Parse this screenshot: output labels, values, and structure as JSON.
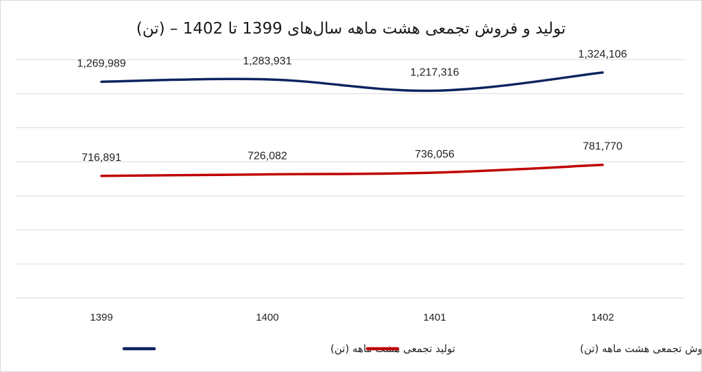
{
  "chart_data": {
    "type": "line",
    "title": "تولید و فروش تجمعی هشت ماهه سال‌های 1399 تا 1402 – (تن)",
    "categories": [
      "1399",
      "1400",
      "1401",
      "1402"
    ],
    "series": [
      {
        "name": "تولید تجمعی هشت ماهه (تن)",
        "color": "#0d2460",
        "values": [
          1269989,
          1283931,
          1217316,
          1324106
        ],
        "labels": [
          "1,269,989",
          "1,283,931",
          "1,217,316",
          "1,324,106"
        ]
      },
      {
        "name": "فروش تجمعی هشت ماهه (تن)",
        "color": "#c00000",
        "values": [
          716891,
          726082,
          736056,
          781770
        ],
        "labels": [
          "716,891",
          "726,082",
          "736,056",
          "781,770"
        ]
      }
    ],
    "ylim": [
      0,
      1400000
    ],
    "y_tick_step": 200000,
    "grid": true,
    "legend_position": "bottom",
    "xlabel": "",
    "ylabel": ""
  }
}
